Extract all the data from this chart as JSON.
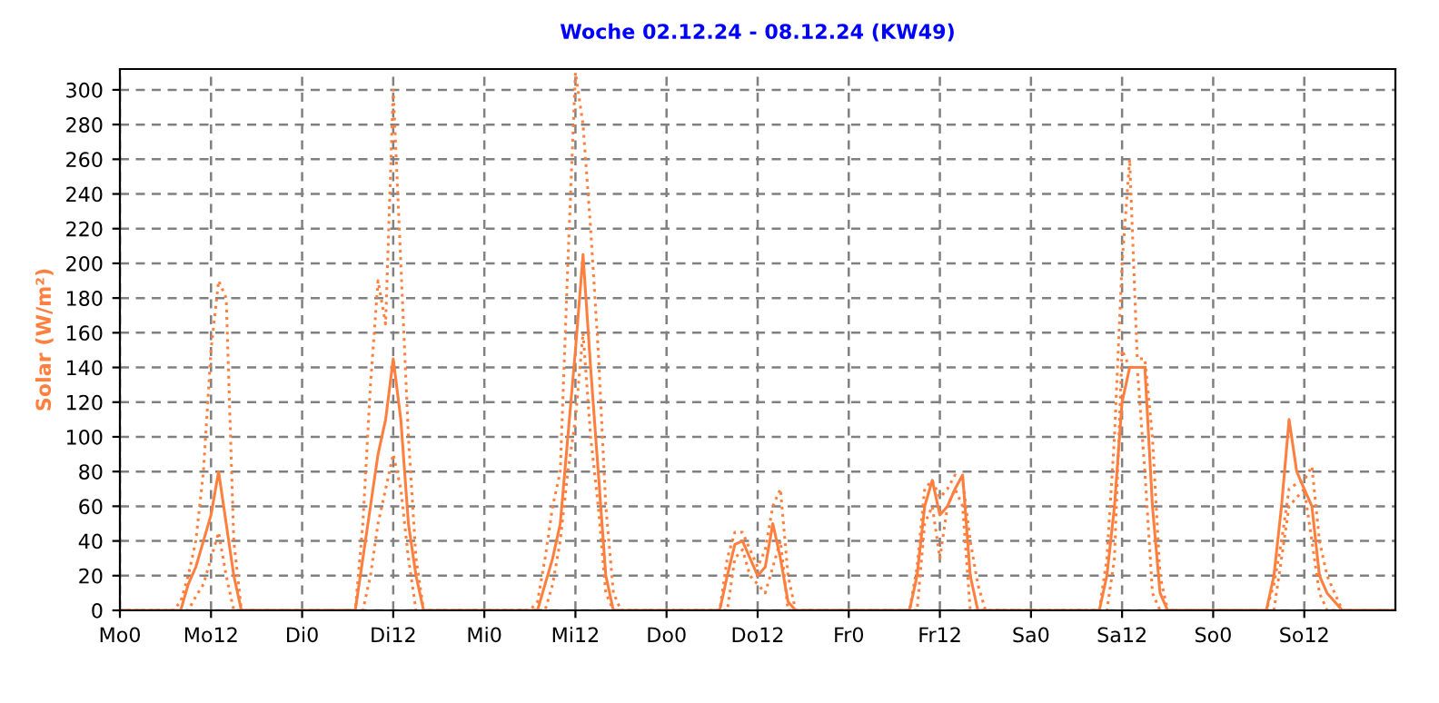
{
  "chart_data": {
    "type": "line",
    "title": "Woche 02.12.24 - 08.12.24 (KW49)",
    "ylabel": "Solar (W/m²)",
    "categories": [
      "Mo0",
      null,
      null,
      null,
      null,
      null,
      null,
      null,
      null,
      null,
      null,
      null,
      "Mo12",
      null,
      null,
      null,
      null,
      null,
      null,
      null,
      null,
      null,
      null,
      null,
      "Di0",
      null,
      null,
      null,
      null,
      null,
      null,
      null,
      null,
      null,
      null,
      null,
      "Di12",
      null,
      null,
      null,
      null,
      null,
      null,
      null,
      null,
      null,
      null,
      null,
      "Mi0",
      null,
      null,
      null,
      null,
      null,
      null,
      null,
      null,
      null,
      null,
      null,
      "Mi12",
      null,
      null,
      null,
      null,
      null,
      null,
      null,
      null,
      null,
      null,
      null,
      "Do0",
      null,
      null,
      null,
      null,
      null,
      null,
      null,
      null,
      null,
      null,
      null,
      "Do12",
      null,
      null,
      null,
      null,
      null,
      null,
      null,
      null,
      null,
      null,
      null,
      "Fr0",
      null,
      null,
      null,
      null,
      null,
      null,
      null,
      null,
      null,
      null,
      null,
      "Fr12",
      null,
      null,
      null,
      null,
      null,
      null,
      null,
      null,
      null,
      null,
      null,
      "Sa0",
      null,
      null,
      null,
      null,
      null,
      null,
      null,
      null,
      null,
      null,
      null,
      "Sa12",
      null,
      null,
      null,
      null,
      null,
      null,
      null,
      null,
      null,
      null,
      null,
      "So0",
      null,
      null,
      null,
      null,
      null,
      null,
      null,
      null,
      null,
      null,
      null,
      "So12",
      null,
      null,
      null,
      null,
      null,
      null,
      null,
      null,
      null,
      null,
      null,
      null
    ],
    "ylim": [
      0,
      312
    ],
    "yticks": [
      0,
      20,
      40,
      60,
      80,
      100,
      120,
      140,
      160,
      180,
      200,
      220,
      240,
      260,
      280,
      300
    ],
    "grid": true,
    "marker": "none",
    "series": [
      {
        "color": "#ff7f3f",
        "line_style": "solid",
        "values": [
          0,
          0,
          0,
          0,
          0,
          0,
          0,
          0,
          0,
          15,
          25,
          40,
          55,
          80,
          50,
          20,
          0,
          0,
          0,
          0,
          0,
          0,
          0,
          0,
          0,
          0,
          0,
          0,
          0,
          0,
          0,
          0,
          30,
          60,
          90,
          110,
          145,
          110,
          50,
          20,
          0,
          0,
          0,
          0,
          0,
          0,
          0,
          0,
          0,
          0,
          0,
          0,
          0,
          0,
          0,
          0,
          15,
          30,
          50,
          100,
          150,
          205,
          140,
          80,
          20,
          0,
          0,
          0,
          0,
          0,
          0,
          0,
          0,
          0,
          0,
          0,
          0,
          0,
          0,
          0,
          20,
          38,
          40,
          30,
          20,
          25,
          50,
          30,
          5,
          0,
          0,
          0,
          0,
          0,
          0,
          0,
          0,
          0,
          0,
          0,
          0,
          0,
          0,
          0,
          0,
          20,
          60,
          75,
          55,
          60,
          70,
          78,
          20,
          0,
          0,
          0,
          0,
          0,
          0,
          0,
          0,
          0,
          0,
          0,
          0,
          0,
          0,
          0,
          0,
          0,
          20,
          60,
          120,
          140,
          140,
          140,
          60,
          10,
          0,
          0,
          0,
          0,
          0,
          0,
          0,
          0,
          0,
          0,
          0,
          0,
          0,
          0,
          20,
          60,
          110,
          80,
          70,
          60,
          20,
          10,
          5,
          0,
          0,
          0,
          0,
          0,
          0,
          0,
          0
        ]
      },
      {
        "color": "#ff7f3f",
        "line_style": "dotted",
        "values": [
          0,
          0,
          0,
          0,
          0,
          0,
          0,
          0,
          5,
          20,
          40,
          80,
          150,
          190,
          180,
          40,
          0,
          0,
          0,
          0,
          0,
          0,
          0,
          0,
          0,
          0,
          0,
          0,
          0,
          0,
          0,
          0,
          50,
          130,
          190,
          165,
          300,
          200,
          100,
          30,
          0,
          0,
          0,
          0,
          0,
          0,
          0,
          0,
          0,
          0,
          0,
          0,
          0,
          0,
          0,
          5,
          30,
          60,
          80,
          200,
          310,
          280,
          220,
          150,
          60,
          10,
          0,
          0,
          0,
          0,
          0,
          0,
          0,
          0,
          0,
          0,
          0,
          0,
          0,
          0,
          30,
          45,
          45,
          35,
          25,
          35,
          60,
          70,
          20,
          0,
          0,
          0,
          0,
          0,
          0,
          0,
          0,
          0,
          0,
          0,
          0,
          0,
          0,
          0,
          0,
          25,
          70,
          75,
          65,
          70,
          78,
          75,
          40,
          15,
          0,
          0,
          0,
          0,
          0,
          0,
          0,
          0,
          0,
          0,
          0,
          0,
          0,
          0,
          0,
          0,
          30,
          100,
          200,
          260,
          145,
          145,
          100,
          20,
          0,
          0,
          0,
          0,
          0,
          0,
          0,
          0,
          0,
          0,
          0,
          0,
          0,
          0,
          15,
          40,
          70,
          73,
          75,
          83,
          40,
          20,
          10,
          0,
          0,
          0,
          0,
          0,
          0,
          0,
          0
        ]
      },
      {
        "color": "#ff7f3f",
        "line_style": "dotted",
        "values": [
          0,
          0,
          0,
          0,
          0,
          0,
          0,
          0,
          0,
          0,
          8,
          15,
          30,
          45,
          20,
          0,
          0,
          0,
          0,
          0,
          0,
          0,
          0,
          0,
          0,
          0,
          0,
          0,
          0,
          0,
          0,
          0,
          0,
          20,
          50,
          70,
          90,
          70,
          30,
          0,
          0,
          0,
          0,
          0,
          0,
          0,
          0,
          0,
          0,
          0,
          0,
          0,
          0,
          0,
          0,
          0,
          0,
          15,
          40,
          80,
          110,
          160,
          100,
          60,
          10,
          0,
          0,
          0,
          0,
          0,
          0,
          0,
          0,
          0,
          0,
          0,
          0,
          0,
          0,
          0,
          0,
          30,
          35,
          20,
          15,
          10,
          25,
          40,
          0,
          0,
          0,
          0,
          0,
          0,
          0,
          0,
          0,
          0,
          0,
          0,
          0,
          0,
          0,
          0,
          0,
          0,
          50,
          60,
          30,
          60,
          70,
          60,
          0,
          0,
          0,
          0,
          0,
          0,
          0,
          0,
          0,
          0,
          0,
          0,
          0,
          0,
          0,
          0,
          0,
          0,
          0,
          30,
          150,
          140,
          140,
          80,
          10,
          0,
          0,
          0,
          0,
          0,
          0,
          0,
          0,
          0,
          0,
          0,
          0,
          0,
          0,
          0,
          0,
          30,
          60,
          65,
          70,
          40,
          10,
          0,
          0,
          0,
          0,
          0,
          0,
          0,
          0,
          0,
          0
        ]
      }
    ]
  }
}
